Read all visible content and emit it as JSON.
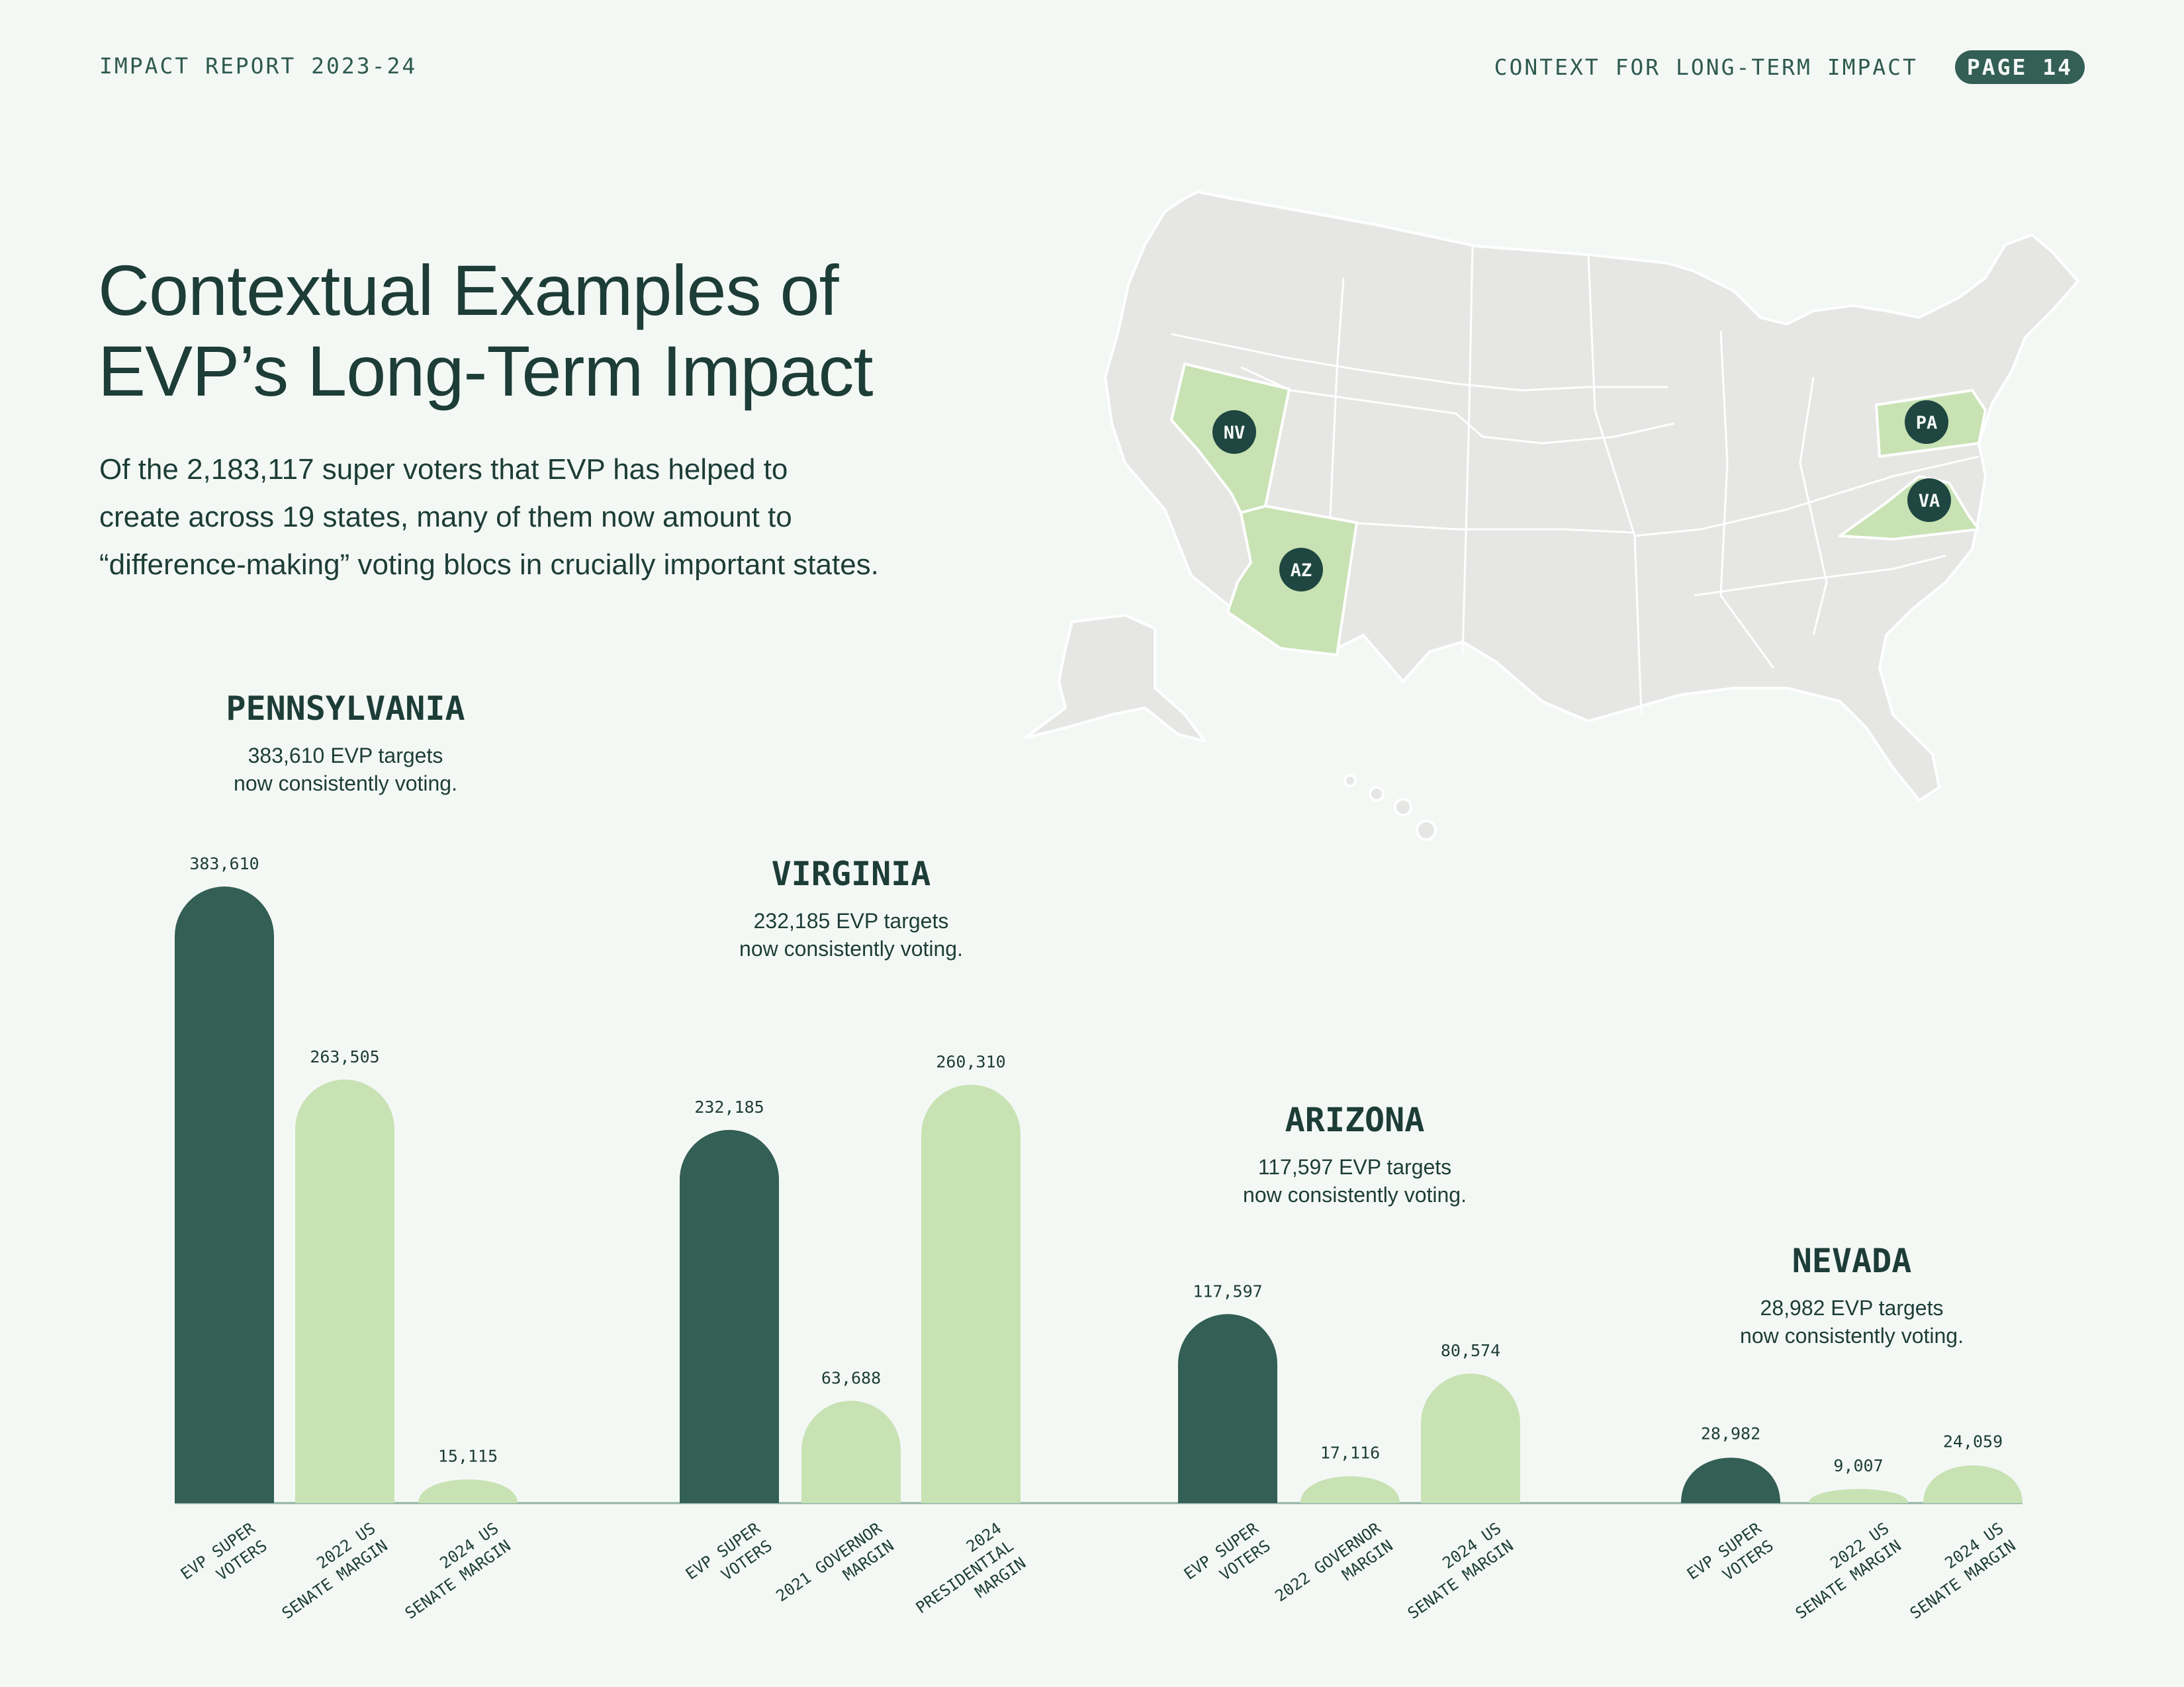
{
  "header": {
    "report_title": "IMPACT REPORT 2023-24",
    "section_title": "CONTEXT FOR LONG-TERM IMPACT",
    "page_label": "PAGE 14"
  },
  "title": {
    "line1": "Contextual Examples of",
    "line2": "EVP’s Long-Term Impact"
  },
  "intro": {
    "line1": "Of the 2,183,117 super voters that EVP has helped to",
    "line2": "create across 19 states, many of them now amount to",
    "line3": "“difference-making” voting blocs in crucially important states."
  },
  "map": {
    "highlighted_states": [
      "NV",
      "AZ",
      "PA",
      "VA"
    ],
    "colors": {
      "base": "#e6e6e4",
      "highlight": "#c8e2b4",
      "marker": "#1f4640",
      "border": "#ffffff"
    }
  },
  "chart_data": {
    "type": "bar",
    "colors": {
      "super_voters": "#335f55",
      "margin": "#c8e2b4"
    },
    "groups": [
      {
        "state": "PENNSYLVANIA",
        "subtitle_line1": "383,610 EVP targets",
        "subtitle_line2": "now consistently voting.",
        "bars": [
          {
            "label": [
              "EVP SUPER",
              "VOTERS"
            ],
            "value": 383610,
            "value_label": "383,610",
            "kind": "super_voters"
          },
          {
            "label": [
              "2022 US",
              "SENATE MARGIN"
            ],
            "value": 263505,
            "value_label": "263,505",
            "kind": "margin"
          },
          {
            "label": [
              "2024 US",
              "SENATE MARGIN"
            ],
            "value": 15115,
            "value_label": "15,115",
            "kind": "margin"
          }
        ]
      },
      {
        "state": "VIRGINIA",
        "subtitle_line1": "232,185 EVP targets",
        "subtitle_line2": "now consistently voting.",
        "bars": [
          {
            "label": [
              "EVP SUPER",
              "VOTERS"
            ],
            "value": 232185,
            "value_label": "232,185",
            "kind": "super_voters"
          },
          {
            "label": [
              "2021 GOVERNOR",
              "MARGIN"
            ],
            "value": 63688,
            "value_label": "63,688",
            "kind": "margin"
          },
          {
            "label": [
              "2024",
              "PRESIDENTIAL",
              "MARGIN"
            ],
            "value": 260310,
            "value_label": "260,310",
            "kind": "margin"
          }
        ]
      },
      {
        "state": "ARIZONA",
        "subtitle_line1": "117,597 EVP targets",
        "subtitle_line2": "now consistently voting.",
        "bars": [
          {
            "label": [
              "EVP SUPER",
              "VOTERS"
            ],
            "value": 117597,
            "value_label": "117,597",
            "kind": "super_voters"
          },
          {
            "label": [
              "2022 GOVERNOR",
              "MARGIN"
            ],
            "value": 17116,
            "value_label": "17,116",
            "kind": "margin"
          },
          {
            "label": [
              "2024 US",
              "SENATE MARGIN"
            ],
            "value": 80574,
            "value_label": "80,574",
            "kind": "margin"
          }
        ]
      },
      {
        "state": "NEVADA",
        "subtitle_line1": "28,982 EVP targets",
        "subtitle_line2": "now consistently voting.",
        "bars": [
          {
            "label": [
              "EVP SUPER",
              "VOTERS"
            ],
            "value": 28982,
            "value_label": "28,982",
            "kind": "super_voters"
          },
          {
            "label": [
              "2022 US",
              "SENATE MARGIN"
            ],
            "value": 9007,
            "value_label": "9,007",
            "kind": "margin"
          },
          {
            "label": [
              "2024 US",
              "SENATE MARGIN"
            ],
            "value": 24059,
            "value_label": "24,059",
            "kind": "margin"
          }
        ]
      }
    ]
  }
}
